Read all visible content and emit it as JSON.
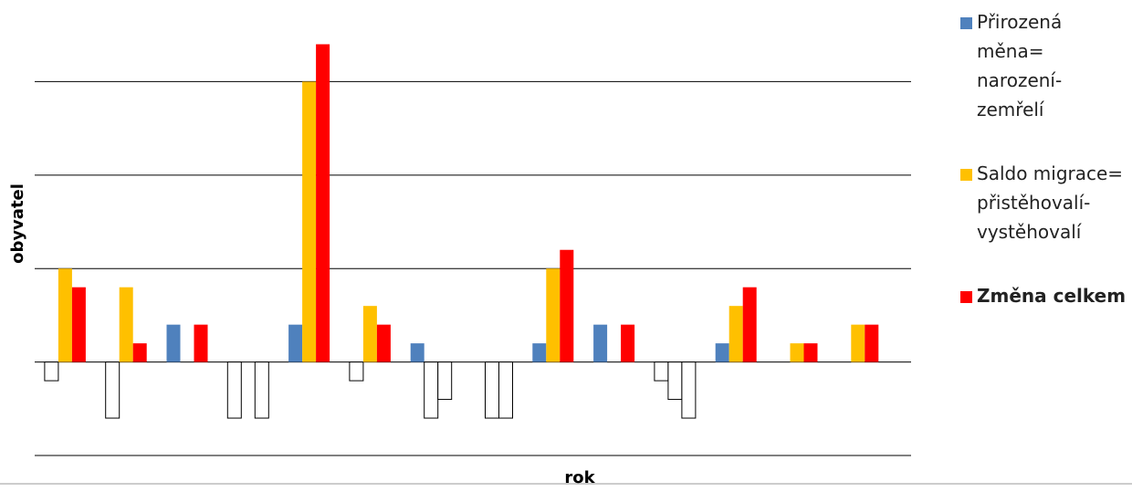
{
  "chart_data": {
    "type": "bar",
    "x_label": "rok",
    "y_label": "obyvatel",
    "categories": [
      null,
      null,
      null,
      null,
      null,
      null,
      null,
      null,
      null,
      null,
      null,
      null,
      null,
      null
    ],
    "series": [
      {
        "name": "Přirozená měna= narození-zemřelí",
        "color": "#4f81bd",
        "values": [
          -1,
          -3,
          2,
          -3,
          2,
          -1,
          1,
          0,
          1,
          2,
          -1,
          1,
          0,
          0
        ]
      },
      {
        "name": "Saldo migrace= přistěhovalí-vystěhovalí",
        "color": "#ffc000",
        "values": [
          5,
          4,
          0,
          0,
          15,
          3,
          -3,
          -3,
          5,
          0,
          -2,
          3,
          1,
          2
        ]
      },
      {
        "name": "Změna celkem",
        "color": "#ff0000",
        "values": [
          4,
          1,
          2,
          -3,
          17,
          2,
          -2,
          -3,
          6,
          2,
          -3,
          4,
          1,
          2
        ]
      }
    ],
    "invert_if_negative": true,
    "ylim": [
      -5,
      18
    ],
    "yticks": [
      -5,
      0,
      5,
      10,
      15
    ],
    "grid": true,
    "legend": "right"
  }
}
